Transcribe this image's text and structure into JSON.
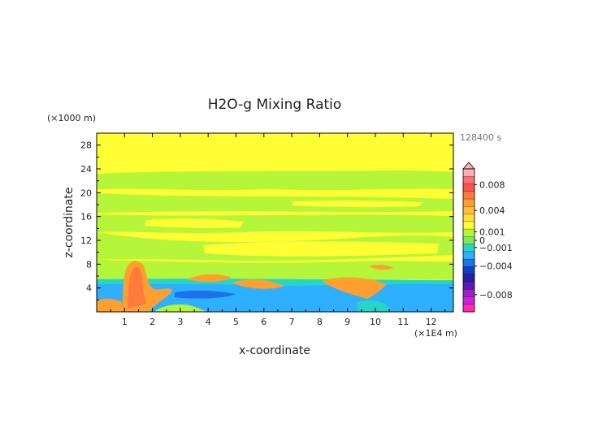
{
  "chart_data": {
    "type": "heatmap",
    "title": "H2O-g Mixing Ratio",
    "xlabel": "x-coordinate",
    "ylabel": "z-coordinate",
    "x_unit": "(×1E4 m)",
    "y_unit": "(×1000 m)",
    "time_label": "128400 s",
    "xlim": [
      0,
      12.8
    ],
    "ylim": [
      0,
      30
    ],
    "x_ticks": [
      "1",
      "2",
      "3",
      "4",
      "5",
      "6",
      "7",
      "8",
      "9",
      "10",
      "11",
      "12"
    ],
    "y_ticks": [
      "4",
      "8",
      "12",
      "16",
      "20",
      "24",
      "28"
    ],
    "colorbar": {
      "labels": [
        "0.008",
        "0.004",
        "0.001",
        "0",
        "−0.001",
        "−0.004",
        "−0.008"
      ],
      "colors": [
        "#ffb0b0",
        "#ff7070",
        "#ff5050",
        "#ff7a3c",
        "#ff9f2f",
        "#ffc030",
        "#ffe040",
        "#ffff33",
        "#b5f53a",
        "#7fea55",
        "#25d6c8",
        "#2cb0ff",
        "#1c72e8",
        "#1440c0",
        "#2820a0",
        "#5a1ab4",
        "#9a22c8",
        "#d020d8",
        "#ff2aae"
      ]
    },
    "colors": {
      "background": "#ffff33",
      "near_zero_band": "#b5f53a",
      "moist_positive": "#ff9f2f",
      "strong_positive": "#ff7a3c",
      "dry_negative": "#2cb0ff",
      "strong_negative": "#1c72e8",
      "transition": "#25d6c8"
    }
  }
}
